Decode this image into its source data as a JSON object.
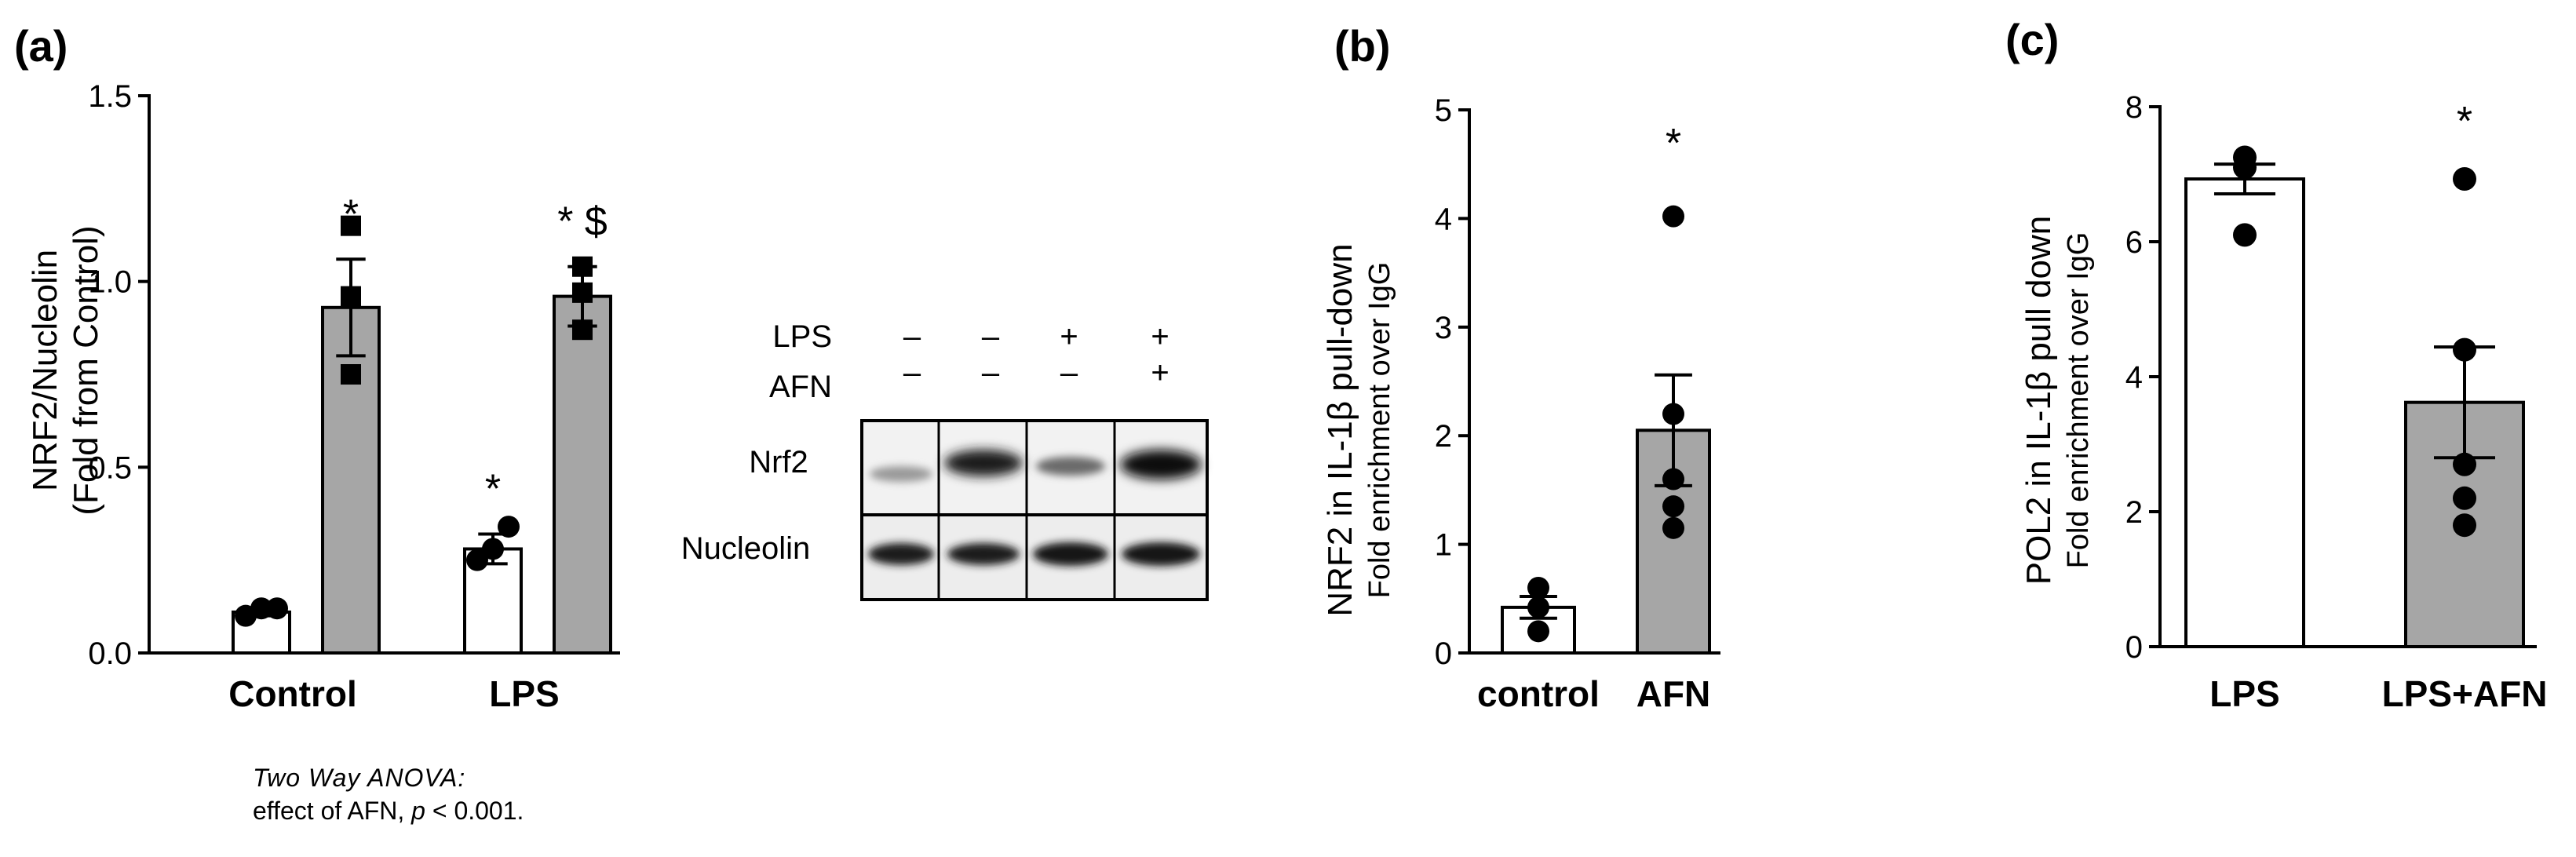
{
  "panels": {
    "a": {
      "label": "(a)",
      "ylabel_line1": "NRF2/Nucleolin",
      "ylabel_line2": "(Fold from Control)",
      "note_line1": "Two  Way  ANOVA:",
      "note_line2_prefix": "effect of AFN, ",
      "note_line2_p": "p",
      "note_line2_suffix": " < 0.001."
    },
    "b": {
      "label": "(b)",
      "ylabel_line1": "NRF2 in IL-1β pull-down",
      "ylabel_line2": "Fold  enrichment over IgG"
    },
    "c": {
      "label": "(c)",
      "ylabel_line1": "POL2 in IL-1β pull down",
      "ylabel_line2": "Fold  enrichment over IgG"
    }
  },
  "blot": {
    "row_labels": [
      "LPS",
      "AFN"
    ],
    "lps_signs": [
      "–",
      "–",
      "+",
      "+"
    ],
    "afn_signs": [
      "–",
      "–",
      "–",
      "+"
    ],
    "band_labels": [
      "Nrf2",
      "Nucleolin"
    ]
  },
  "chart_data": [
    {
      "panel": "a",
      "type": "bar",
      "categories": [
        "Control",
        "LPS"
      ],
      "ylim": [
        0,
        1.5
      ],
      "yticks": [
        0.0,
        0.5,
        1.0,
        1.5
      ],
      "ytick_labels": [
        "0.0",
        "0.5",
        "1.0",
        "1.5"
      ],
      "series": [
        {
          "fill": "#ffffff",
          "marker": "circle",
          "values": [
            0.11,
            0.28
          ],
          "sem": [
            0.01,
            0.04
          ],
          "points": [
            [
              0.1,
              0.12,
              0.12
            ],
            [
              0.25,
              0.28,
              0.34
            ]
          ],
          "annotations": [
            "",
            "*"
          ]
        },
        {
          "fill": "#a6a6a6",
          "marker": "square",
          "values": [
            0.93,
            0.96
          ],
          "sem": [
            0.13,
            0.08
          ],
          "points": [
            [
              1.15,
              0.96,
              0.75
            ],
            [
              1.04,
              0.97,
              0.87
            ]
          ],
          "annotations": [
            "*",
            "* $"
          ]
        }
      ]
    },
    {
      "panel": "b",
      "type": "bar",
      "categories": [
        "control",
        "AFN"
      ],
      "ylim": [
        0,
        5
      ],
      "yticks": [
        0,
        1,
        2,
        3,
        4,
        5
      ],
      "ytick_labels": [
        "0",
        "1",
        "2",
        "3",
        "4",
        "5"
      ],
      "values": [
        0.42,
        2.05
      ],
      "sem": [
        0.1,
        0.51
      ],
      "fills": [
        "#ffffff",
        "#a6a6a6"
      ],
      "points": [
        [
          0.2,
          0.42,
          0.6
        ],
        [
          1.15,
          1.35,
          1.6,
          2.2,
          4.02
        ]
      ],
      "annotations": [
        "",
        "*"
      ]
    },
    {
      "panel": "c",
      "type": "bar",
      "categories": [
        "LPS",
        "LPS+AFN"
      ],
      "ylim": [
        0,
        8
      ],
      "yticks": [
        0,
        2,
        4,
        6,
        8
      ],
      "ytick_labels": [
        "0",
        "2",
        "4",
        "6",
        "8"
      ],
      "values": [
        6.93,
        3.62
      ],
      "sem": [
        0.22,
        0.82
      ],
      "fills": [
        "#ffffff",
        "#a6a6a6"
      ],
      "points": [
        [
          6.1,
          7.1,
          7.25
        ],
        [
          1.8,
          2.2,
          2.7,
          4.4,
          6.93
        ]
      ],
      "annotations": [
        "",
        "*"
      ]
    }
  ]
}
